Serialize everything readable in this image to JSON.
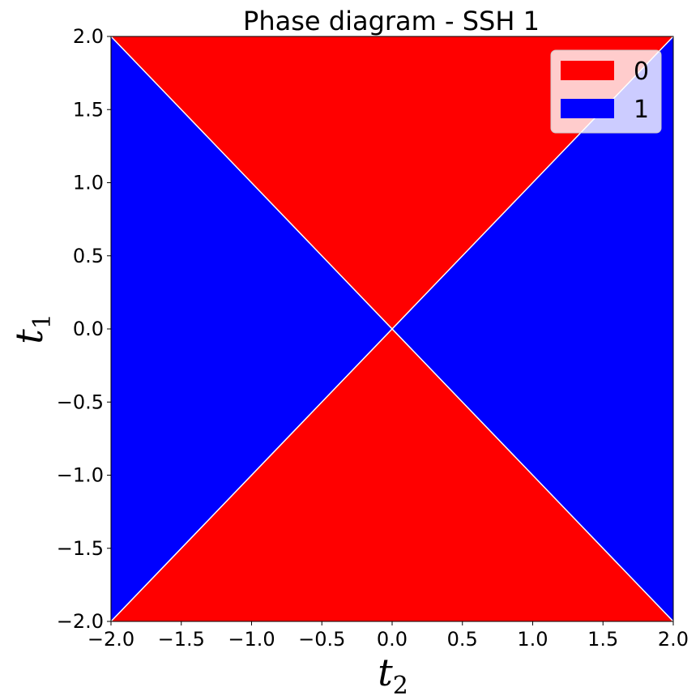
{
  "chart_data": {
    "type": "heatmap",
    "title": "Phase diagram - SSH 1",
    "xlabel": {
      "base": "t",
      "sub": "2"
    },
    "ylabel": {
      "base": "t",
      "sub": "1"
    },
    "xlim": [
      -2.0,
      2.0
    ],
    "ylim": [
      -2.0,
      2.0
    ],
    "xticks": [
      "−2.0",
      "−1.5",
      "−1.0",
      "−0.5",
      "0.0",
      "0.5",
      "1.0",
      "1.5",
      "2.0"
    ],
    "yticks": [
      "−2.0",
      "−1.5",
      "−1.0",
      "−0.5",
      "0.0",
      "0.5",
      "1.0",
      "1.5",
      "2.0"
    ],
    "x_tick_values": [
      -2.0,
      -1.5,
      -1.0,
      -0.5,
      0.0,
      0.5,
      1.0,
      1.5,
      2.0
    ],
    "y_tick_values": [
      -2.0,
      -1.5,
      -1.0,
      -0.5,
      0.0,
      0.5,
      1.0,
      1.5,
      2.0
    ],
    "phase_rule": "phase 0 where |t1| > |t2|, phase 1 where |t1| < |t2|",
    "regions": [
      {
        "phase": "0",
        "polygon": [
          [
            -2,
            2
          ],
          [
            2,
            2
          ],
          [
            0,
            0
          ]
        ]
      },
      {
        "phase": "0",
        "polygon": [
          [
            -2,
            -2
          ],
          [
            2,
            -2
          ],
          [
            0,
            0
          ]
        ]
      },
      {
        "phase": "1",
        "polygon": [
          [
            -2,
            2
          ],
          [
            -2,
            -2
          ],
          [
            0,
            0
          ]
        ]
      },
      {
        "phase": "1",
        "polygon": [
          [
            2,
            2
          ],
          [
            2,
            -2
          ],
          [
            0,
            0
          ]
        ]
      }
    ],
    "boundaries": [
      {
        "from": [
          -2,
          -2
        ],
        "to": [
          2,
          2
        ]
      },
      {
        "from": [
          -2,
          2
        ],
        "to": [
          2,
          -2
        ]
      }
    ],
    "legend": {
      "placement": "top-right",
      "entries": [
        {
          "label": "0",
          "color": "#ff0000"
        },
        {
          "label": "1",
          "color": "#0000ff"
        }
      ]
    },
    "grid": false
  }
}
